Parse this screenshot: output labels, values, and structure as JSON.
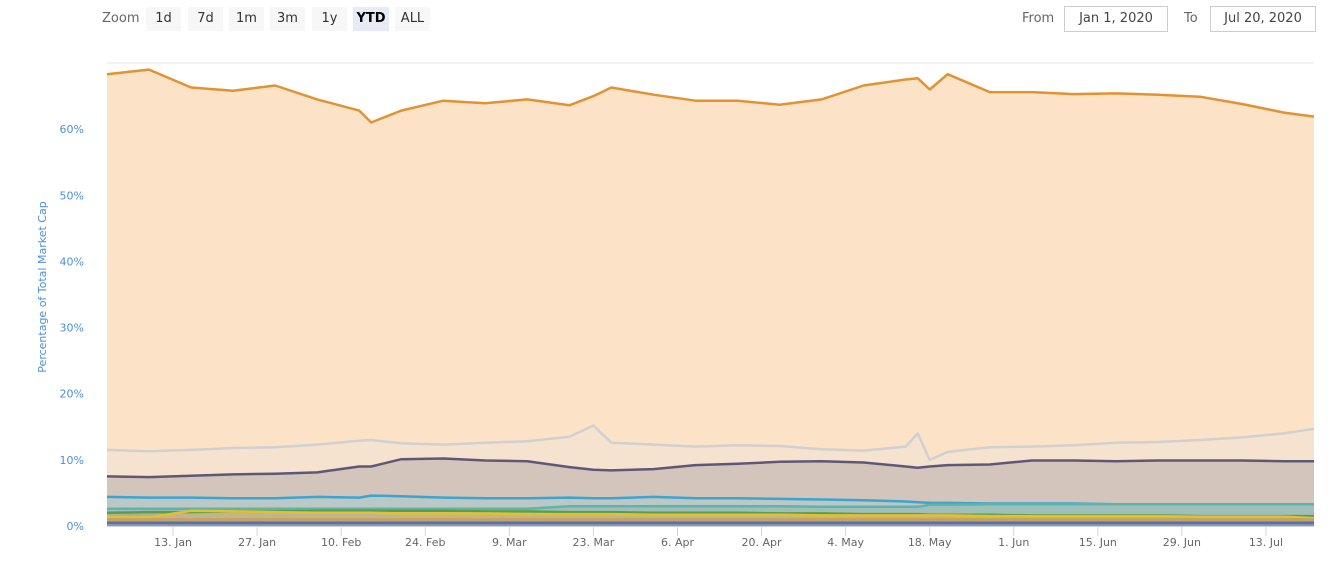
{
  "toolbar": {
    "zoom_label": "Zoom",
    "buttons": [
      "1d",
      "7d",
      "1m",
      "3m",
      "1y",
      "YTD",
      "ALL"
    ],
    "selected": "YTD",
    "from_label": "From",
    "from_value": "Jan 1, 2020",
    "to_label": "To",
    "to_value": "Jul 20, 2020"
  },
  "chart_data": {
    "type": "area",
    "stacked_display": "cumulative levels",
    "ylabel": "Percentage of Total Market Cap",
    "ylim": [
      0,
      70
    ],
    "yticks": [
      0,
      10,
      20,
      30,
      40,
      50,
      60
    ],
    "ytick_labels": [
      "0%",
      "10%",
      "20%",
      "30%",
      "40%",
      "50%",
      "60%"
    ],
    "x_unit": "day of year 2020",
    "xlim": [
      2,
      203
    ],
    "xticks": [
      13,
      27,
      41,
      55,
      69,
      83,
      97,
      111,
      125,
      139,
      153,
      167,
      181,
      195
    ],
    "xtick_labels": [
      "13. Jan",
      "27. Jan",
      "10. Feb",
      "24. Feb",
      "9. Mar",
      "23. Mar",
      "6. Apr",
      "20. Apr",
      "4. May",
      "18. May",
      "1. Jun",
      "15. Jun",
      "29. Jun",
      "13. Jul"
    ],
    "x": [
      2,
      9,
      16,
      23,
      30,
      37,
      44,
      46,
      51,
      58,
      65,
      72,
      79,
      83,
      86,
      93,
      100,
      107,
      114,
      121,
      128,
      135,
      137,
      139,
      142,
      149,
      156,
      163,
      170,
      177,
      184,
      191,
      198,
      203
    ],
    "series": [
      {
        "line": "#e39232",
        "fill": "#fce3c7",
        "values": [
          68.3,
          69.0,
          66.3,
          65.8,
          66.6,
          64.5,
          62.8,
          61.0,
          62.8,
          64.3,
          63.9,
          64.5,
          63.6,
          65.0,
          66.3,
          65.2,
          64.3,
          64.3,
          63.7,
          64.5,
          66.6,
          67.5,
          67.7,
          66.0,
          68.3,
          65.6,
          65.6,
          65.3,
          65.4,
          65.2,
          64.9,
          63.8,
          62.5,
          61.9
        ]
      },
      {
        "line": "#d0d0d0",
        "fill": "#f5e3cf",
        "values": [
          11.5,
          11.3,
          11.5,
          11.8,
          11.9,
          12.3,
          12.9,
          13.0,
          12.5,
          12.3,
          12.6,
          12.8,
          13.5,
          15.2,
          12.6,
          12.3,
          12.0,
          12.2,
          12.1,
          11.6,
          11.4,
          12.0,
          14.0,
          10.0,
          11.2,
          11.9,
          12.0,
          12.2,
          12.6,
          12.7,
          13.0,
          13.4,
          14.0,
          14.7
        ]
      },
      {
        "line": "#5e5878",
        "fill": "#d3c5bb",
        "values": [
          7.5,
          7.4,
          7.6,
          7.8,
          7.9,
          8.1,
          9.0,
          9.0,
          10.1,
          10.2,
          9.9,
          9.8,
          8.9,
          8.5,
          8.4,
          8.6,
          9.2,
          9.4,
          9.7,
          9.8,
          9.6,
          9.0,
          8.8,
          9.0,
          9.2,
          9.3,
          9.9,
          9.9,
          9.8,
          9.9,
          9.9,
          9.9,
          9.8,
          9.8
        ]
      },
      {
        "line": "#3ba4cf",
        "fill": "#bcc8c6",
        "values": [
          4.4,
          4.3,
          4.3,
          4.2,
          4.2,
          4.4,
          4.3,
          4.6,
          4.5,
          4.3,
          4.2,
          4.2,
          4.3,
          4.2,
          4.2,
          4.4,
          4.2,
          4.2,
          4.1,
          4.0,
          3.9,
          3.7,
          3.6,
          3.5,
          3.5,
          3.4,
          3.4,
          3.4,
          3.3,
          3.3,
          3.3,
          3.3,
          3.3,
          3.3
        ]
      },
      {
        "line": "#5fb3ab",
        "fill": "#9fbfbb",
        "values": [
          2.6,
          2.6,
          2.6,
          2.6,
          2.6,
          2.6,
          2.6,
          2.6,
          2.6,
          2.6,
          2.6,
          2.6,
          3.0,
          3.0,
          3.0,
          3.0,
          3.0,
          3.0,
          3.0,
          2.9,
          2.9,
          2.9,
          2.9,
          3.2,
          3.2,
          3.3,
          3.3,
          3.3,
          3.3,
          3.3,
          3.3,
          3.3,
          3.3,
          3.3
        ]
      },
      {
        "line": "#5a9e4c",
        "fill": "#a8b39c",
        "values": [
          2.0,
          2.1,
          2.1,
          2.2,
          2.2,
          2.3,
          2.3,
          2.3,
          2.3,
          2.3,
          2.2,
          2.2,
          2.1,
          2.1,
          2.1,
          2.0,
          2.0,
          2.0,
          1.9,
          1.9,
          1.8,
          1.8,
          1.8,
          1.7,
          1.7,
          1.7,
          1.6,
          1.6,
          1.6,
          1.6,
          1.5,
          1.5,
          1.5,
          1.5
        ]
      },
      {
        "line": "#e3c12e",
        "fill": "#c2b48f",
        "values": [
          1.3,
          1.3,
          2.3,
          2.2,
          2.1,
          2.0,
          2.0,
          2.0,
          1.9,
          1.9,
          1.9,
          1.8,
          1.8,
          1.8,
          1.8,
          1.7,
          1.7,
          1.7,
          1.7,
          1.6,
          1.6,
          1.6,
          1.6,
          1.6,
          1.6,
          1.5,
          1.5,
          1.5,
          1.5,
          1.5,
          1.4,
          1.4,
          1.4,
          1.2
        ]
      },
      {
        "line": "#c8a25a",
        "fill": "#b5a68e",
        "values": [
          1.0,
          1.0,
          1.0,
          1.0,
          1.0,
          1.0,
          1.0,
          1.0,
          1.0,
          1.0,
          1.0,
          1.0,
          1.0,
          1.0,
          1.0,
          1.0,
          1.0,
          1.0,
          1.0,
          1.0,
          1.0,
          1.0,
          1.0,
          1.0,
          1.0,
          1.0,
          1.0,
          1.0,
          1.0,
          1.0,
          1.0,
          1.0,
          1.0,
          1.0
        ]
      },
      {
        "line": "#5b6fa8",
        "fill": "#8a93ad",
        "values": [
          0.5,
          0.5,
          0.5,
          0.5,
          0.5,
          0.5,
          0.5,
          0.5,
          0.5,
          0.5,
          0.5,
          0.5,
          0.5,
          0.5,
          0.5,
          0.5,
          0.5,
          0.5,
          0.5,
          0.5,
          0.5,
          0.5,
          0.5,
          0.5,
          0.5,
          0.5,
          0.5,
          0.5,
          0.5,
          0.5,
          0.5,
          0.5,
          0.5,
          0.5
        ]
      }
    ]
  }
}
